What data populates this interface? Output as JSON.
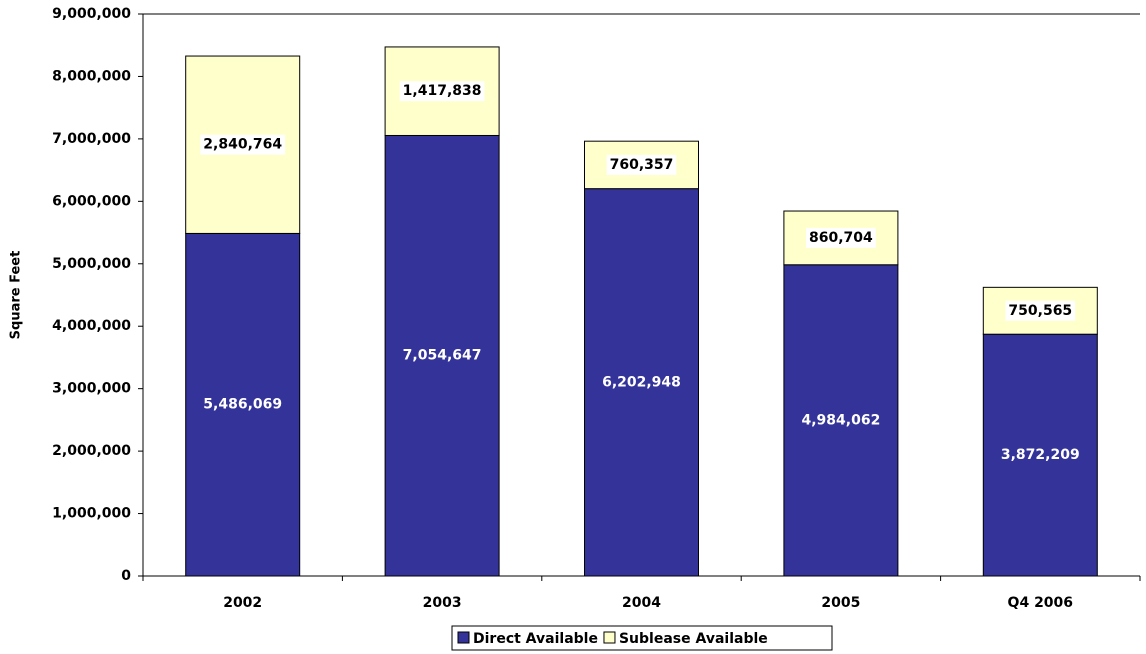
{
  "chart_data": {
    "type": "stacked_bar",
    "y_label": "Square Feet",
    "categories": [
      "2002",
      "2003",
      "2004",
      "2005",
      "Q4 2006"
    ],
    "series": [
      {
        "name": "Direct Available",
        "color": "#333399",
        "values": [
          5486069,
          7054647,
          6202948,
          4984062,
          3872209
        ],
        "value_labels": [
          "5,486,069",
          "7,054,647",
          "6,202,948",
          "4,984,062",
          "3,872,209"
        ]
      },
      {
        "name": "Sublease Available",
        "color": "#ffffcc",
        "values": [
          2840764,
          1417838,
          760357,
          860704,
          750565
        ],
        "value_labels": [
          "2,840,764",
          "1,417,838",
          "760,357",
          "860,704",
          "750,565"
        ]
      }
    ],
    "ylim": [
      0,
      9000000
    ],
    "yticks": [
      0,
      {
        "value": 1000000,
        "label": "1,000,000"
      },
      {
        "value": 2000000,
        "label": "2,000,000"
      },
      {
        "value": 3000000,
        "label": "3,000,000"
      },
      {
        "value": 4000000,
        "label": "4,000,000"
      },
      {
        "value": 5000000,
        "label": "5,000,000"
      },
      {
        "value": 6000000,
        "label": "6,000,000"
      },
      {
        "value": 7000000,
        "label": "7,000,000"
      },
      {
        "value": 8000000,
        "label": "8,000,000"
      },
      {
        "value": 9000000,
        "label": "9,000,000"
      }
    ],
    "grid": false,
    "legend": "bottom"
  }
}
